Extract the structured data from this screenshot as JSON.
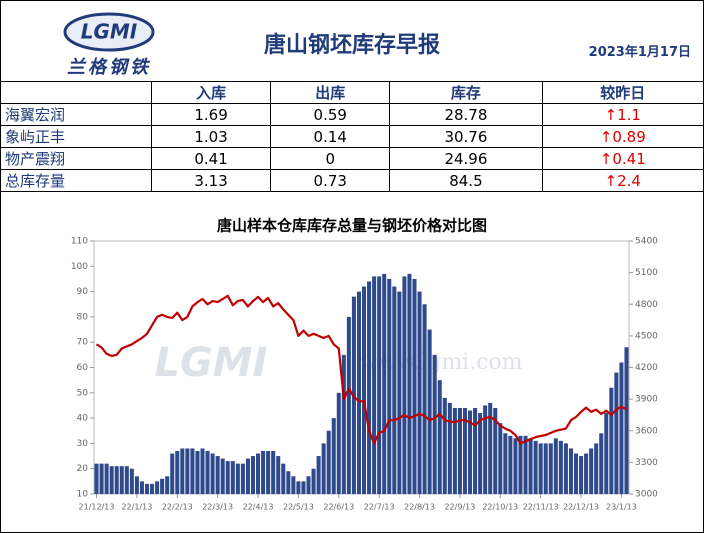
{
  "header": {
    "logo": "LGMI",
    "brand": "兰格钢铁",
    "title": "唐山钢坯库存早报",
    "date": "2023年1月17日"
  },
  "table": {
    "columns": [
      "",
      "入库",
      "出库",
      "库存",
      "较昨日"
    ],
    "rows": [
      [
        "海翼宏润",
        1.69,
        0.59,
        28.78,
        "↑1.1"
      ],
      [
        "象屿正丰",
        1.03,
        0.14,
        30.76,
        "↑0.89"
      ],
      [
        "物产震翔",
        0.41,
        0,
        24.96,
        "↑0.41"
      ],
      [
        "总库存量",
        3.13,
        0.73,
        84.5,
        "↑2.4"
      ]
    ]
  },
  "chart_data": {
    "type": "bar-line",
    "title": "唐山样本仓库库存总量与钢坯价格对比图",
    "watermark": {
      "logo": "LGMI",
      "url": "www.lgmi.com"
    },
    "categories": [
      "21/12/13",
      null,
      null,
      null,
      null,
      null,
      null,
      null,
      "22/1/13",
      null,
      null,
      null,
      null,
      null,
      null,
      null,
      "22/2/13",
      null,
      null,
      null,
      null,
      null,
      null,
      null,
      "22/3/13",
      null,
      null,
      null,
      null,
      null,
      null,
      null,
      "22/4/13",
      null,
      null,
      null,
      null,
      null,
      null,
      null,
      "22/5/13",
      null,
      null,
      null,
      null,
      null,
      null,
      null,
      "22/6/13",
      null,
      null,
      null,
      null,
      null,
      null,
      null,
      "22/7/13",
      null,
      null,
      null,
      null,
      null,
      null,
      null,
      "22/8/13",
      null,
      null,
      null,
      null,
      null,
      null,
      null,
      "22/9/13",
      null,
      null,
      null,
      null,
      null,
      null,
      null,
      "22/10/13",
      null,
      null,
      null,
      null,
      null,
      null,
      null,
      "22/11/13",
      null,
      null,
      null,
      null,
      null,
      null,
      null,
      "22/12/13",
      null,
      null,
      null,
      null,
      null,
      null,
      null,
      "23/1/13",
      null
    ],
    "series": [
      {
        "type": "bar",
        "color": "#2e4a8c",
        "values": [
          22,
          22,
          22,
          21,
          21,
          21,
          21,
          20,
          17,
          15,
          14,
          14,
          15,
          16,
          17,
          26,
          27,
          28,
          28,
          28,
          27,
          28,
          27,
          26,
          25,
          24,
          23,
          23,
          22,
          22,
          24,
          25,
          26,
          27,
          27,
          27,
          25,
          22,
          19,
          17,
          15,
          15,
          17,
          20,
          25,
          30,
          35,
          40,
          50,
          65,
          80,
          88,
          90,
          92,
          94,
          96,
          96,
          97,
          95,
          92,
          90,
          96,
          97,
          95,
          90,
          85,
          75,
          65,
          55,
          48,
          46,
          44,
          44,
          44,
          43,
          44,
          42,
          45,
          46,
          44,
          38,
          34,
          33,
          32,
          33,
          33,
          32,
          31,
          30,
          30,
          30,
          32,
          31,
          30,
          28,
          26,
          25,
          26,
          28,
          30,
          34,
          42,
          52,
          58,
          62,
          68
        ]
      },
      {
        "type": "line",
        "axis": "y2",
        "color": "#c00000",
        "values": [
          4420,
          4390,
          4330,
          4310,
          4320,
          4380,
          4400,
          4420,
          4450,
          4480,
          4520,
          4600,
          4680,
          4700,
          4680,
          4670,
          4720,
          4650,
          4680,
          4780,
          4820,
          4850,
          4800,
          4830,
          4820,
          4850,
          4880,
          4790,
          4830,
          4840,
          4780,
          4830,
          4870,
          4820,
          4860,
          4780,
          4810,
          4750,
          4700,
          4650,
          4500,
          4550,
          4500,
          4520,
          4500,
          4480,
          4500,
          4420,
          4380,
          3900,
          4000,
          3920,
          3880,
          3880,
          3600,
          3480,
          3580,
          3600,
          3700,
          3700,
          3720,
          3750,
          3720,
          3740,
          3760,
          3740,
          3700,
          3720,
          3760,
          3700,
          3690,
          3680,
          3700,
          3700,
          3680,
          3650,
          3700,
          3720,
          3730,
          3700,
          3650,
          3620,
          3600,
          3560,
          3480,
          3500,
          3520,
          3540,
          3550,
          3560,
          3580,
          3600,
          3610,
          3620,
          3700,
          3730,
          3780,
          3820,
          3780,
          3800,
          3760,
          3790,
          3750,
          3800,
          3830,
          3800
        ]
      }
    ],
    "ylim": [
      10,
      110
    ],
    "yticks": [
      10,
      20,
      30,
      40,
      50,
      60,
      70,
      80,
      90,
      100,
      110
    ],
    "y2lim": [
      3000,
      5400
    ],
    "y2ticks": [
      3000,
      3300,
      3600,
      3900,
      4200,
      4500,
      4800,
      5100,
      5400
    ]
  }
}
